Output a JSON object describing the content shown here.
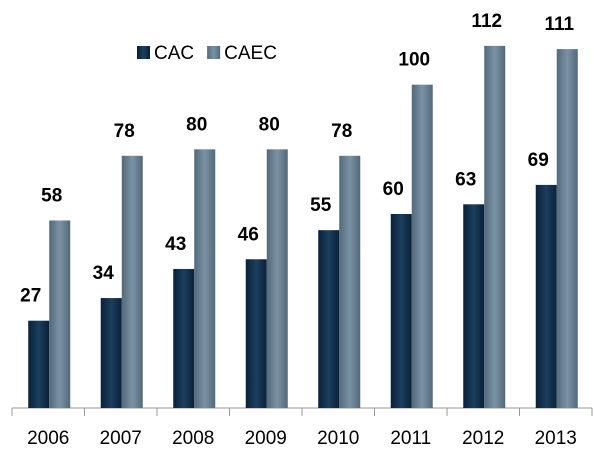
{
  "chart_data": {
    "type": "bar",
    "categories": [
      "2006",
      "2007",
      "2008",
      "2009",
      "2010",
      "2011",
      "2012",
      "2013"
    ],
    "series": [
      {
        "name": "CAC",
        "color": "#0f2d48",
        "values": [
          27,
          34,
          43,
          46,
          55,
          60,
          63,
          69
        ]
      },
      {
        "name": "CAEC",
        "color": "#637e90",
        "values": [
          58,
          78,
          80,
          80,
          78,
          100,
          112,
          111
        ]
      }
    ],
    "ylim": [
      0,
      120
    ],
    "legend": "top"
  }
}
